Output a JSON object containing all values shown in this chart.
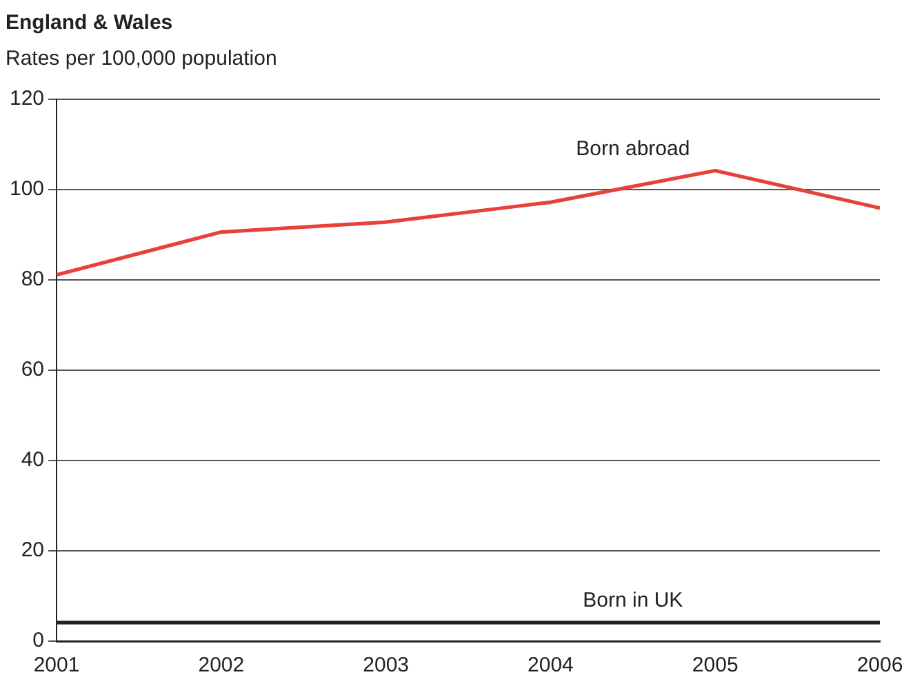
{
  "chart_data": {
    "type": "line",
    "title": "England & Wales",
    "subtitle": "Rates per 100,000 population",
    "x": [
      2001,
      2002,
      2003,
      2004,
      2005,
      2006
    ],
    "series": [
      {
        "name": "Born abroad",
        "color": "#e8403a",
        "values": [
          81.1,
          90.6,
          92.8,
          97.2,
          104.2,
          95.9
        ]
      },
      {
        "name": "Born in UK",
        "color": "#222222",
        "values": [
          4.1,
          4.1,
          4.1,
          4.1,
          4.1,
          4.1
        ]
      }
    ],
    "xlim": [
      2001,
      2006
    ],
    "xticks": [
      2001,
      2002,
      2003,
      2004,
      2005,
      2006
    ],
    "ylim": [
      0,
      120
    ],
    "yticks": [
      0,
      20,
      40,
      60,
      80,
      100,
      120
    ],
    "grid": "y",
    "legend": false,
    "marker": "none",
    "line_style": "solid"
  }
}
